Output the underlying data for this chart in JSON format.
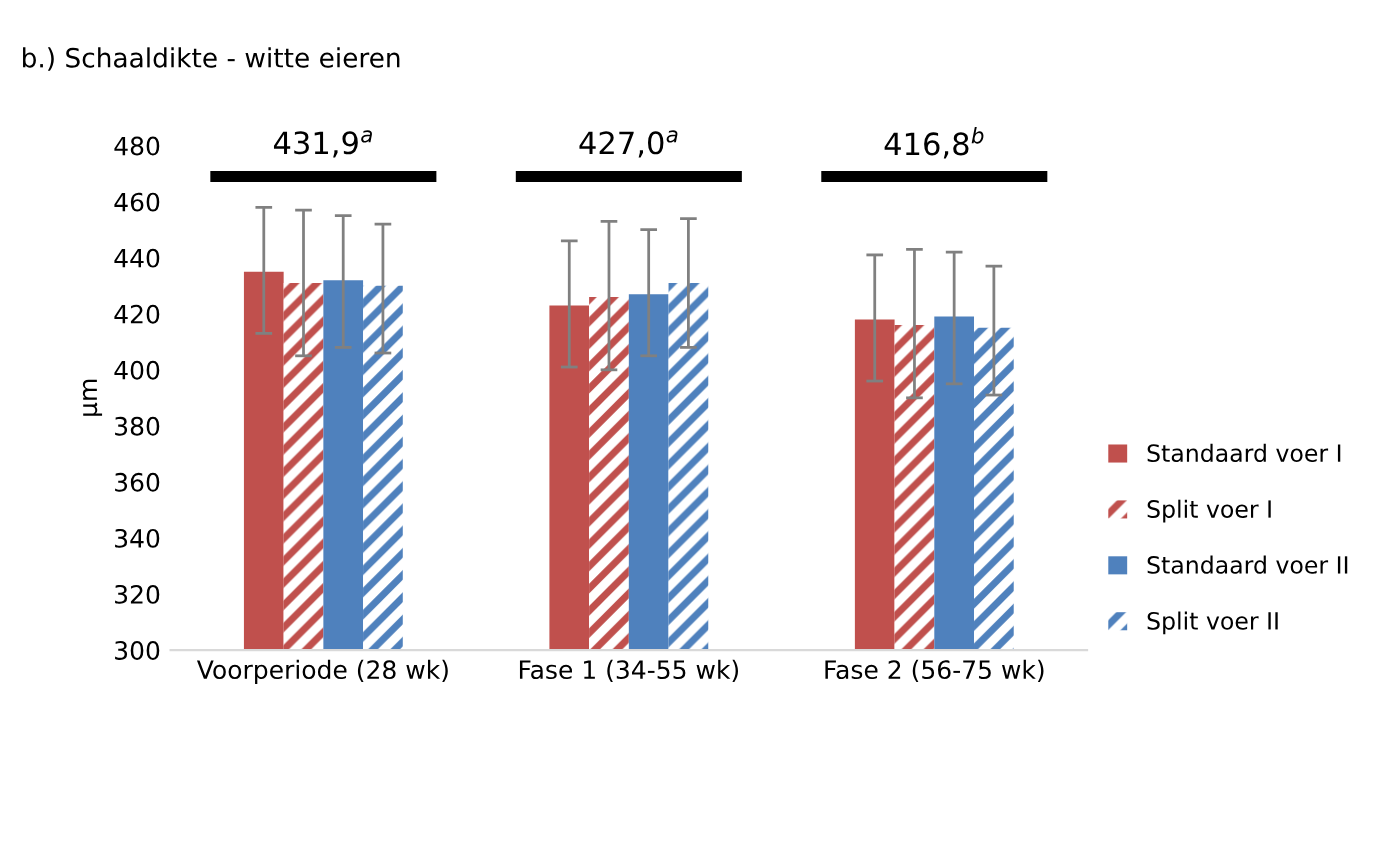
{
  "chart_data": {
    "type": "bar",
    "title": "b.) Schaaldikte - witte eieren",
    "ylabel": "µm",
    "categories": [
      "Voorperiode (28 wk)",
      "Fase 1 (34-55 wk)",
      "Fase 2 (56-75 wk)"
    ],
    "series": [
      {
        "name": "Standaard voer I",
        "color": "#c0504d",
        "values": [
          435,
          423,
          418
        ],
        "errors": [
          [
            413,
            458
          ],
          [
            401,
            446
          ],
          [
            396,
            441
          ]
        ]
      },
      {
        "name": "Split voer I",
        "color": "#c0504d",
        "values": [
          431,
          426,
          416
        ],
        "errors": [
          [
            405,
            457
          ],
          [
            400,
            453
          ],
          [
            390,
            443
          ]
        ]
      },
      {
        "name": "Standaard voer II",
        "color": "#4f81bd",
        "values": [
          432,
          427,
          419
        ],
        "errors": [
          [
            408,
            455
          ],
          [
            405,
            450
          ],
          [
            395,
            442
          ]
        ]
      },
      {
        "name": "Split voer II",
        "color": "#4f81bd",
        "values": [
          430,
          431,
          415
        ],
        "errors": [
          [
            406,
            452
          ],
          [
            408,
            454
          ],
          [
            391,
            437
          ]
        ]
      }
    ],
    "annotations": [
      "431,9$^{a}$",
      "427,0$^{a}$",
      "416,8$^{b}$"
    ],
    "ylim": [
      300,
      480
    ],
    "yticks": [
      300,
      320,
      340,
      360,
      380,
      400,
      420,
      440,
      460,
      480
    ],
    "grid": false,
    "legend": "right"
  }
}
